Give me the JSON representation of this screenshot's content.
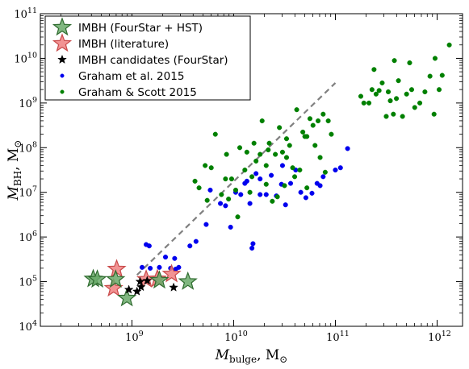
{
  "chart_data": {
    "type": "scatter",
    "x_scale": "log",
    "y_scale": "log",
    "xlim_log10": [
      8.1,
      12.25
    ],
    "ylim_log10": [
      4,
      11
    ],
    "xticks": [
      {
        "exp": 9,
        "label_base": "10",
        "label_exp": "9"
      },
      {
        "exp": 10,
        "label_base": "10",
        "label_exp": "10"
      },
      {
        "exp": 11,
        "label_base": "10",
        "label_exp": "11"
      },
      {
        "exp": 12,
        "label_base": "10",
        "label_exp": "12"
      }
    ],
    "yticks": [
      {
        "exp": 4,
        "label_base": "10",
        "label_exp": "4"
      },
      {
        "exp": 5,
        "label_base": "10",
        "label_exp": "5"
      },
      {
        "exp": 6,
        "label_base": "10",
        "label_exp": "6"
      },
      {
        "exp": 7,
        "label_base": "10",
        "label_exp": "7"
      },
      {
        "exp": 8,
        "label_base": "10",
        "label_exp": "8"
      },
      {
        "exp": 9,
        "label_base": "10",
        "label_exp": "9"
      },
      {
        "exp": 10,
        "label_base": "10",
        "label_exp": "10"
      },
      {
        "exp": 11,
        "label_base": "10",
        "label_exp": "11"
      }
    ],
    "xlabel": {
      "main": "M",
      "sub": "bulge",
      "unit": ", M",
      "unit_sub": "⊙"
    },
    "ylabel": {
      "main": "M",
      "sub": "BH",
      "unit": ", M",
      "unit_sub": "⊙"
    },
    "trend_line": {
      "x_log10": [
        9.05,
        11.0
      ],
      "y_log10": [
        5.15,
        9.45
      ],
      "color": "#808080",
      "style": "dashed"
    },
    "legend_position": "top-left",
    "series": [
      {
        "name": "IMBH (FourStar + HST)",
        "marker": "star-large",
        "color": "#6aaa6a",
        "edge": "#2f6b2f",
        "points": [
          [
            8.62,
            5.06
          ],
          [
            8.66,
            5.05
          ],
          [
            8.84,
            5.05
          ],
          [
            8.95,
            4.63
          ],
          [
            9.27,
            5.03
          ],
          [
            9.55,
            5.0
          ]
        ]
      },
      {
        "name": "IMBH (literature)",
        "marker": "star-large",
        "color": "#f08080",
        "edge": "#c84a4a",
        "points": [
          [
            8.82,
            4.85
          ],
          [
            8.85,
            5.28
          ],
          [
            9.14,
            5.05
          ],
          [
            9.25,
            5.06
          ],
          [
            9.39,
            5.17
          ]
        ]
      },
      {
        "name": "IMBH candidates (FourStar)",
        "marker": "star-small",
        "color": "#000000",
        "edge": "#000000",
        "points": [
          [
            8.97,
            4.82
          ],
          [
            9.05,
            4.78
          ],
          [
            9.08,
            5.0
          ],
          [
            9.09,
            4.88
          ],
          [
            9.15,
            5.02
          ],
          [
            9.41,
            4.87
          ]
        ]
      },
      {
        "name": "Graham et al. 2015",
        "marker": "dot",
        "color": "#0000ee",
        "edge": "#0000ee",
        "points": [
          [
            9.1,
            5.32
          ],
          [
            9.14,
            5.83
          ],
          [
            9.17,
            5.8
          ],
          [
            9.18,
            5.3
          ],
          [
            9.23,
            5.06
          ],
          [
            9.27,
            5.32
          ],
          [
            9.33,
            5.55
          ],
          [
            9.38,
            5.3
          ],
          [
            9.42,
            5.52
          ],
          [
            9.43,
            5.28
          ],
          [
            9.46,
            5.32
          ],
          [
            9.57,
            5.8
          ],
          [
            9.63,
            5.9
          ],
          [
            9.73,
            6.28
          ],
          [
            9.77,
            7.05
          ],
          [
            9.87,
            6.75
          ],
          [
            9.92,
            6.7
          ],
          [
            9.97,
            6.22
          ],
          [
            10.02,
            7.0
          ],
          [
            10.07,
            6.95
          ],
          [
            10.11,
            7.2
          ],
          [
            10.16,
            6.75
          ],
          [
            10.18,
            5.75
          ],
          [
            10.19,
            5.85
          ],
          [
            10.22,
            7.42
          ],
          [
            10.26,
            7.3
          ],
          [
            10.32,
            6.95
          ],
          [
            10.37,
            7.38
          ],
          [
            10.42,
            6.92
          ],
          [
            10.47,
            7.18
          ],
          [
            10.51,
            6.72
          ],
          [
            10.56,
            7.2
          ],
          [
            10.61,
            7.5
          ],
          [
            10.66,
            7.0
          ],
          [
            10.71,
            6.88
          ],
          [
            10.77,
            6.98
          ],
          [
            10.82,
            7.2
          ],
          [
            10.85,
            7.15
          ],
          [
            10.88,
            7.35
          ],
          [
            11.0,
            7.5
          ],
          [
            11.05,
            7.55
          ],
          [
            11.12,
            7.98
          ],
          [
            10.48,
            7.6
          ],
          [
            10.26,
            6.95
          ],
          [
            10.13,
            7.25
          ]
        ]
      },
      {
        "name": "Graham & Scott 2015",
        "marker": "dot",
        "color": "#008000",
        "edge": "#008000",
        "points": [
          [
            9.62,
            7.25
          ],
          [
            9.66,
            7.1
          ],
          [
            9.74,
            6.82
          ],
          [
            9.78,
            7.55
          ],
          [
            9.82,
            8.3
          ],
          [
            9.88,
            6.95
          ],
          [
            9.93,
            7.85
          ],
          [
            9.95,
            6.85
          ],
          [
            9.98,
            7.3
          ],
          [
            10.04,
            6.45
          ],
          [
            10.06,
            8.0
          ],
          [
            10.11,
            7.5
          ],
          [
            10.13,
            7.9
          ],
          [
            10.18,
            7.35
          ],
          [
            10.2,
            8.1
          ],
          [
            10.22,
            7.7
          ],
          [
            10.26,
            7.85
          ],
          [
            10.28,
            8.6
          ],
          [
            10.32,
            7.6
          ],
          [
            10.34,
            7.95
          ],
          [
            10.35,
            8.1
          ],
          [
            10.38,
            6.8
          ],
          [
            10.41,
            7.85
          ],
          [
            10.43,
            6.9
          ],
          [
            10.45,
            8.45
          ],
          [
            10.48,
            7.9
          ],
          [
            10.5,
            7.15
          ],
          [
            10.52,
            8.2
          ],
          [
            10.55,
            8.05
          ],
          [
            10.58,
            7.55
          ],
          [
            10.6,
            7.35
          ],
          [
            10.62,
            8.85
          ],
          [
            10.65,
            7.5
          ],
          [
            10.68,
            8.35
          ],
          [
            10.7,
            8.25
          ],
          [
            10.72,
            7.1
          ],
          [
            10.75,
            8.65
          ],
          [
            10.78,
            8.5
          ],
          [
            10.8,
            8.05
          ],
          [
            10.83,
            8.6
          ],
          [
            10.85,
            7.78
          ],
          [
            10.88,
            8.75
          ],
          [
            10.9,
            7.45
          ],
          [
            10.93,
            8.6
          ],
          [
            10.96,
            8.3
          ],
          [
            9.72,
            7.6
          ],
          [
            9.92,
            7.3
          ],
          [
            10.02,
            7.05
          ],
          [
            10.16,
            7.0
          ],
          [
            10.32,
            7.18
          ],
          [
            10.52,
            7.78
          ],
          [
            10.72,
            8.25
          ],
          [
            11.28,
            9.0
          ],
          [
            11.33,
            9.0
          ],
          [
            11.36,
            9.3
          ],
          [
            11.38,
            9.75
          ],
          [
            11.4,
            9.2
          ],
          [
            11.43,
            9.28
          ],
          [
            11.46,
            9.45
          ],
          [
            11.5,
            8.7
          ],
          [
            11.52,
            9.25
          ],
          [
            11.54,
            9.05
          ],
          [
            11.57,
            8.75
          ],
          [
            11.6,
            9.1
          ],
          [
            11.62,
            9.5
          ],
          [
            11.66,
            8.7
          ],
          [
            11.7,
            9.2
          ],
          [
            11.75,
            9.3
          ],
          [
            11.78,
            8.9
          ],
          [
            11.83,
            9.0
          ],
          [
            11.88,
            9.25
          ],
          [
            11.93,
            9.6
          ],
          [
            11.97,
            8.75
          ],
          [
            12.02,
            9.3
          ],
          [
            12.05,
            9.62
          ],
          [
            11.73,
            9.9
          ],
          [
            11.98,
            10.0
          ],
          [
            12.12,
            10.3
          ],
          [
            11.58,
            9.95
          ],
          [
            11.25,
            9.15
          ]
        ]
      }
    ]
  }
}
